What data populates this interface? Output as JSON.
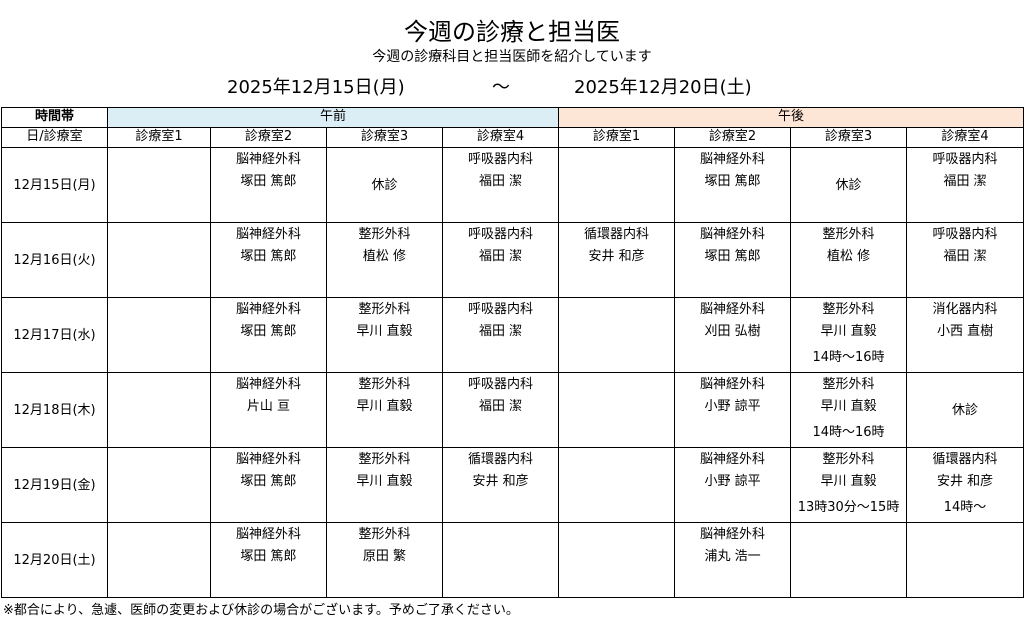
{
  "header": {
    "title": "今週の診療と担当医",
    "subtitle": "今週の診療科目と担当医師を紹介しています",
    "date_start": "2025年12月15日(月)",
    "date_separator": "〜",
    "date_end": "2025年12月20日(土)"
  },
  "table": {
    "corner_top": "時間帯",
    "corner_bottom": "日/診療室",
    "am_label": "午前",
    "pm_label": "午後",
    "am_color": "#dbeef5",
    "pm_color": "#fde6d6",
    "rooms": [
      "診療室1",
      "診療室2",
      "診療室3",
      "診療室4",
      "診療室1",
      "診療室2",
      "診療室3",
      "診療室4"
    ],
    "rows": [
      {
        "day": "12月15日(月)",
        "cells": [
          {
            "lines": []
          },
          {
            "lines": [
              "脳神経外科",
              "塚田 篤郎"
            ]
          },
          {
            "lines": [
              "休診"
            ],
            "center": true
          },
          {
            "lines": [
              "呼吸器内科",
              "福田 潔"
            ]
          },
          {
            "lines": []
          },
          {
            "lines": [
              "脳神経外科",
              "塚田 篤郎"
            ]
          },
          {
            "lines": [
              "休診"
            ],
            "center": true
          },
          {
            "lines": [
              "呼吸器内科",
              "福田 潔"
            ]
          }
        ]
      },
      {
        "day": "12月16日(火)",
        "cells": [
          {
            "lines": []
          },
          {
            "lines": [
              "脳神経外科",
              "塚田 篤郎"
            ]
          },
          {
            "lines": [
              "整形外科",
              "植松 修"
            ]
          },
          {
            "lines": [
              "呼吸器内科",
              "福田 潔"
            ]
          },
          {
            "lines": [
              "循環器内科",
              "安井 和彦"
            ]
          },
          {
            "lines": [
              "脳神経外科",
              "塚田 篤郎"
            ]
          },
          {
            "lines": [
              "整形外科",
              "植松 修"
            ]
          },
          {
            "lines": [
              "呼吸器内科",
              "福田 潔"
            ]
          }
        ]
      },
      {
        "day": "12月17日(水)",
        "cells": [
          {
            "lines": []
          },
          {
            "lines": [
              "脳神経外科",
              "塚田 篤郎"
            ]
          },
          {
            "lines": [
              "整形外科",
              "早川 直毅"
            ]
          },
          {
            "lines": [
              "呼吸器内科",
              "福田 潔"
            ]
          },
          {
            "lines": []
          },
          {
            "lines": [
              "脳神経外科",
              "刈田 弘樹"
            ]
          },
          {
            "lines": [
              "整形外科",
              "早川 直毅"
            ],
            "time": "14時〜16時"
          },
          {
            "lines": [
              "消化器内科",
              "小西 直樹"
            ]
          }
        ]
      },
      {
        "day": "12月18日(木)",
        "cells": [
          {
            "lines": []
          },
          {
            "lines": [
              "脳神経外科",
              "片山 亘"
            ]
          },
          {
            "lines": [
              "整形外科",
              "早川 直毅"
            ]
          },
          {
            "lines": [
              "呼吸器内科",
              "福田 潔"
            ]
          },
          {
            "lines": []
          },
          {
            "lines": [
              "脳神経外科",
              "小野 諒平"
            ]
          },
          {
            "lines": [
              "整形外科",
              "早川 直毅"
            ],
            "time": "14時〜16時"
          },
          {
            "lines": [
              "休診"
            ],
            "center": true
          }
        ]
      },
      {
        "day": "12月19日(金)",
        "cells": [
          {
            "lines": []
          },
          {
            "lines": [
              "脳神経外科",
              "塚田 篤郎"
            ]
          },
          {
            "lines": [
              "整形外科",
              "早川 直毅"
            ]
          },
          {
            "lines": [
              "循環器内科",
              "安井 和彦"
            ]
          },
          {
            "lines": []
          },
          {
            "lines": [
              "脳神経外科",
              "小野 諒平"
            ]
          },
          {
            "lines": [
              "整形外科",
              "早川 直毅"
            ],
            "time": "13時30分〜15時"
          },
          {
            "lines": [
              "循環器内科",
              "安井 和彦"
            ],
            "time": "14時〜"
          }
        ]
      },
      {
        "day": "12月20日(土)",
        "cells": [
          {
            "lines": []
          },
          {
            "lines": [
              "脳神経外科",
              "塚田 篤郎"
            ]
          },
          {
            "lines": [
              "整形外科",
              "原田 繁"
            ]
          },
          {
            "lines": []
          },
          {
            "lines": []
          },
          {
            "lines": [
              "脳神経外科",
              "浦丸 浩一"
            ]
          },
          {
            "lines": []
          },
          {
            "lines": []
          }
        ]
      }
    ]
  },
  "footnote": "※都合により、急遽、医師の変更および休診の場合がございます。予めご了承ください。"
}
